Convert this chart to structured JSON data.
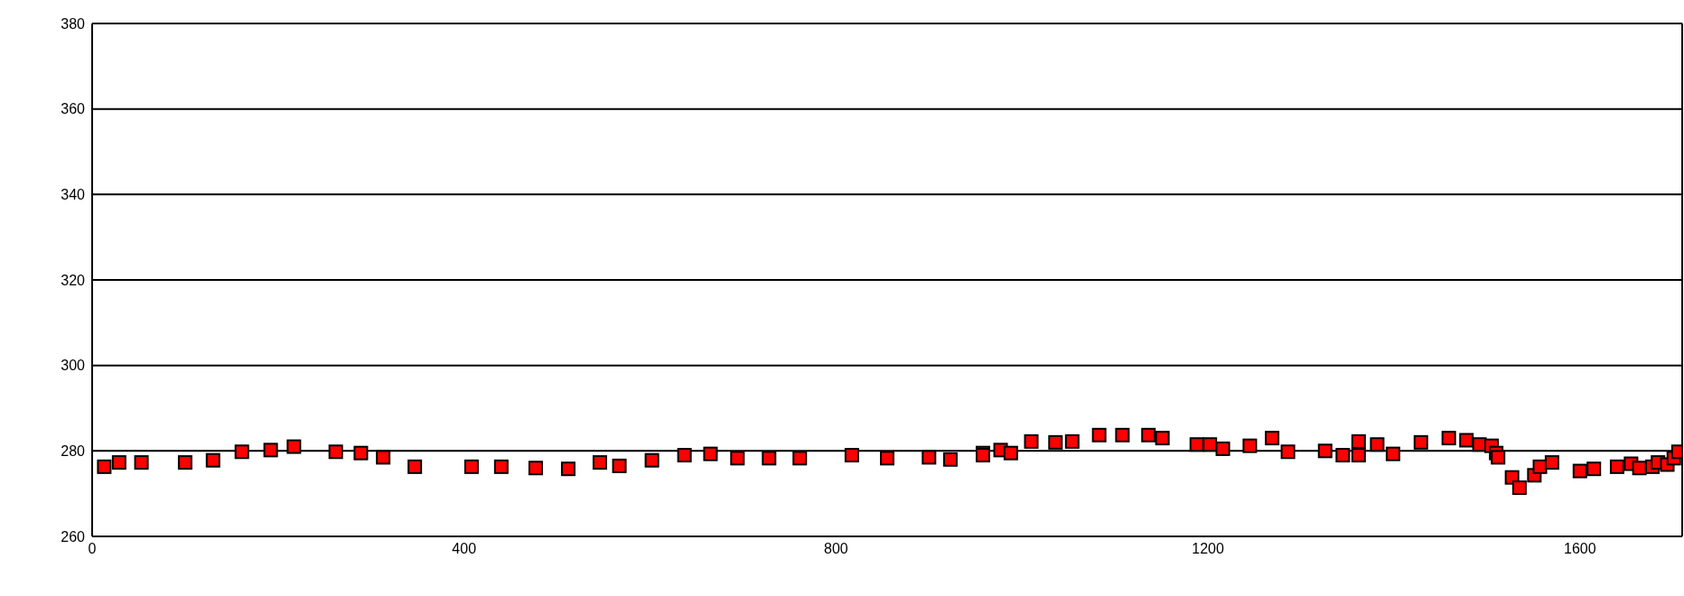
{
  "chart_data": {
    "type": "scatter",
    "xlim": [
      0,
      1710
    ],
    "xticks": [
      0,
      400,
      800,
      1200,
      1600
    ],
    "ylim": [
      260,
      380
    ],
    "yticks": [
      260,
      280,
      300,
      320,
      340,
      360,
      380
    ],
    "grid": "y",
    "marker": "square",
    "legend": false,
    "series": [
      {
        "color": "#ff0000",
        "x": [
          13,
          29,
          53,
          100,
          130,
          161,
          192,
          217,
          262,
          289,
          313,
          347,
          408,
          440,
          477,
          512,
          546,
          567,
          602,
          637,
          665,
          694,
          728,
          761,
          817,
          855,
          900,
          923,
          958,
          958,
          977,
          988,
          1010,
          1036,
          1054,
          1083,
          1108,
          1136,
          1151,
          1188,
          1202,
          1216,
          1245,
          1269,
          1286,
          1326,
          1345,
          1362,
          1362,
          1382,
          1399,
          1429,
          1459,
          1478,
          1492,
          1505,
          1510,
          1512,
          1527,
          1535,
          1551,
          1557,
          1570,
          1600,
          1615,
          1640,
          1655,
          1664,
          1678,
          1684,
          1694,
          1701,
          1706
        ],
        "values": [
          276.3,
          277.3,
          277.3,
          277.3,
          277.8,
          279.8,
          280.2,
          281,
          279.8,
          279.5,
          278.5,
          276.3,
          276.3,
          276.3,
          276,
          275.8,
          277.3,
          276.5,
          277.8,
          279,
          279.3,
          278.3,
          278.3,
          278.3,
          279,
          278.3,
          278.5,
          278,
          279.5,
          279,
          280.2,
          279.5,
          282.2,
          282,
          282.2,
          283.7,
          283.7,
          283.7,
          283,
          281.5,
          281.5,
          280.5,
          281.2,
          283,
          279.8,
          280,
          279,
          282.2,
          279,
          281.5,
          279.3,
          282,
          283,
          282.5,
          281.5,
          281.2,
          279.5,
          278.5,
          273.8,
          271.4,
          274.3,
          276.3,
          277.3,
          275.3,
          275.8,
          276.3,
          277,
          276,
          276.3,
          277.3,
          276.8,
          278.3,
          279.8
        ]
      }
    ]
  }
}
